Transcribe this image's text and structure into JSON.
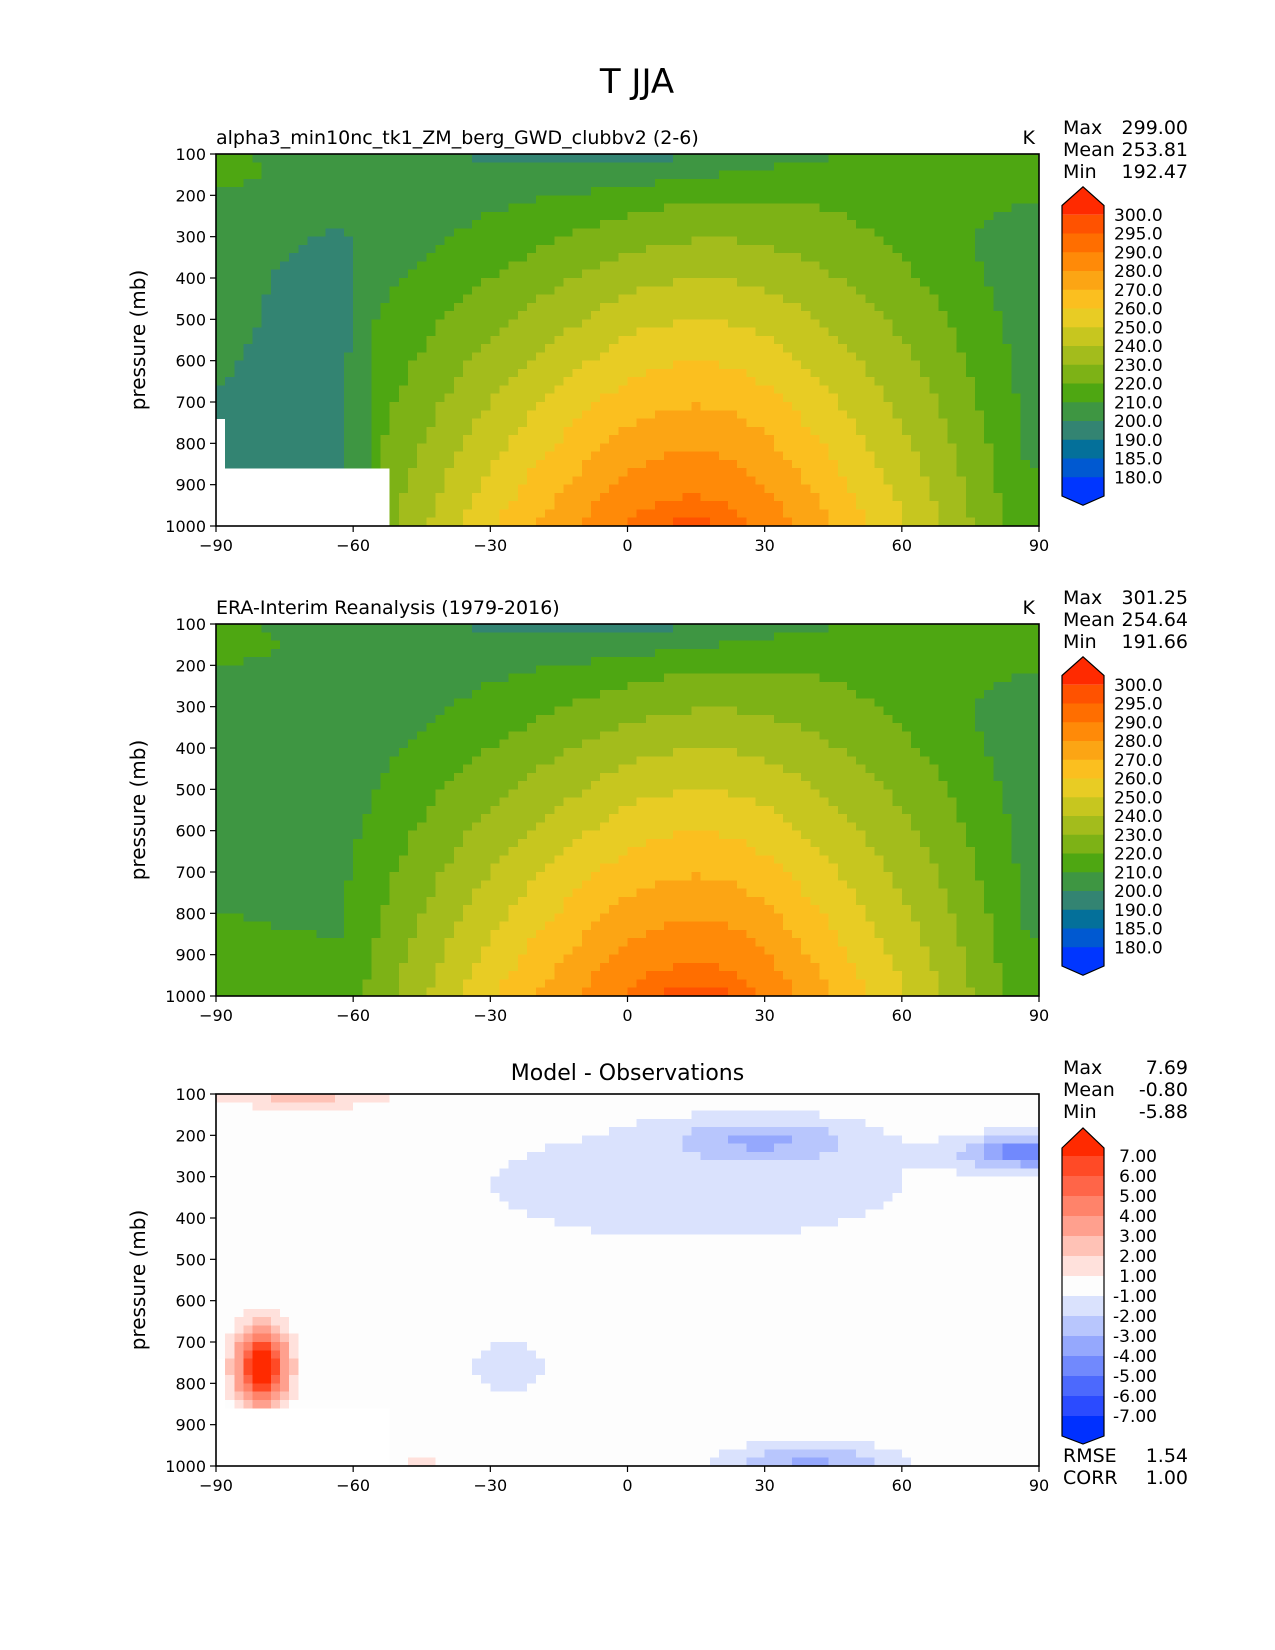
{
  "suptitle": "T JJA",
  "chart_data": [
    {
      "type": "contourf",
      "title": "alpha3_min10nc_tk1_ZM_berg_GWD_clubbv2 (2-6)",
      "units": "K",
      "ylabel": "pressure (mb)",
      "xlabel": "",
      "xlim": [
        -90,
        90
      ],
      "ylim": [
        1000,
        100
      ],
      "xticks": [
        "−90",
        "−60",
        "−30",
        "0",
        "30",
        "60",
        "90"
      ],
      "xtick_values": [
        -90,
        -60,
        -30,
        0,
        30,
        60,
        90
      ],
      "yticks": [
        "100",
        "200",
        "300",
        "400",
        "500",
        "600",
        "700",
        "800",
        "900",
        "1000"
      ],
      "ytick_values": [
        100,
        200,
        300,
        400,
        500,
        600,
        700,
        800,
        900,
        1000
      ],
      "stats": [
        {
          "label": "Max",
          "value": "299.00"
        },
        {
          "label": "Mean",
          "value": "253.81"
        },
        {
          "label": "Min",
          "value": "192.47"
        }
      ],
      "colorbar": {
        "labels": [
          "300.0",
          "295.0",
          "290.0",
          "280.0",
          "270.0",
          "260.0",
          "250.0",
          "240.0",
          "230.0",
          "220.0",
          "210.0",
          "200.0",
          "190.0",
          "185.0",
          "180.0"
        ],
        "colors": [
          "#ff2a00",
          "#ff5200",
          "#ff6e00",
          "#ff8a08",
          "#fca514",
          "#fbbf1f",
          "#e8cc24",
          "#c7c61f",
          "#a3bc1c",
          "#7db216",
          "#4ea712",
          "#3e9642",
          "#338472",
          "#04709a",
          "#0059d1",
          "#0036ff"
        ],
        "extend": "both"
      },
      "missing_region": "white block lower-left, south of ~-52 below ~860 mb",
      "field": "temperature-model"
    },
    {
      "type": "contourf",
      "title": "ERA-Interim Reanalysis (1979-2016)",
      "units": "K",
      "ylabel": "pressure (mb)",
      "xlabel": "",
      "xlim": [
        -90,
        90
      ],
      "ylim": [
        1000,
        100
      ],
      "xticks": [
        "−90",
        "−60",
        "−30",
        "0",
        "30",
        "60",
        "90"
      ],
      "xtick_values": [
        -90,
        -60,
        -30,
        0,
        30,
        60,
        90
      ],
      "yticks": [
        "100",
        "200",
        "300",
        "400",
        "500",
        "600",
        "700",
        "800",
        "900",
        "1000"
      ],
      "ytick_values": [
        100,
        200,
        300,
        400,
        500,
        600,
        700,
        800,
        900,
        1000
      ],
      "stats": [
        {
          "label": "Max",
          "value": "301.25"
        },
        {
          "label": "Mean",
          "value": "254.64"
        },
        {
          "label": "Min",
          "value": "191.66"
        }
      ],
      "colorbar": {
        "labels": [
          "300.0",
          "295.0",
          "290.0",
          "280.0",
          "270.0",
          "260.0",
          "250.0",
          "240.0",
          "230.0",
          "220.0",
          "210.0",
          "200.0",
          "190.0",
          "185.0",
          "180.0"
        ],
        "colors": [
          "#ff2a00",
          "#ff5200",
          "#ff6e00",
          "#ff8a08",
          "#fca514",
          "#fbbf1f",
          "#e8cc24",
          "#c7c61f",
          "#a3bc1c",
          "#7db216",
          "#4ea712",
          "#3e9642",
          "#338472",
          "#04709a",
          "#0059d1",
          "#0036ff"
        ],
        "extend": "both"
      },
      "field": "temperature-obs"
    },
    {
      "type": "contourf",
      "title": "Model - Observations",
      "units": "",
      "ylabel": "pressure (mb)",
      "xlabel": "",
      "xlim": [
        -90,
        90
      ],
      "ylim": [
        1000,
        100
      ],
      "xticks": [
        "−90",
        "−60",
        "−30",
        "0",
        "30",
        "60",
        "90"
      ],
      "xtick_values": [
        -90,
        -60,
        -30,
        0,
        30,
        60,
        90
      ],
      "yticks": [
        "100",
        "200",
        "300",
        "400",
        "500",
        "600",
        "700",
        "800",
        "900",
        "1000"
      ],
      "ytick_values": [
        100,
        200,
        300,
        400,
        500,
        600,
        700,
        800,
        900,
        1000
      ],
      "stats": [
        {
          "label": "Max",
          "value": "7.69"
        },
        {
          "label": "Mean",
          "value": "-0.80"
        },
        {
          "label": "Min",
          "value": "-5.88"
        }
      ],
      "extra_stats": [
        {
          "label": "RMSE",
          "value": "1.54"
        },
        {
          "label": "CORR",
          "value": "1.00"
        }
      ],
      "colorbar": {
        "labels": [
          "7.00",
          "6.00",
          "5.00",
          "4.00",
          "3.00",
          "2.00",
          "1.00",
          "-1.00",
          "-2.00",
          "-3.00",
          "-4.00",
          "-5.00",
          "-6.00",
          "-7.00"
        ],
        "colors": [
          "#ff2a00",
          "#ff4a26",
          "#ff6548",
          "#ff836a",
          "#ffa08e",
          "#ffc2b6",
          "#ffe1dc",
          "#fdfdfd",
          "#dae2fd",
          "#b8c6fd",
          "#95a8fd",
          "#7189fd",
          "#4c69fd",
          "#2b4bff",
          "#0030ff"
        ],
        "extend": "both"
      },
      "field": "difference"
    }
  ]
}
